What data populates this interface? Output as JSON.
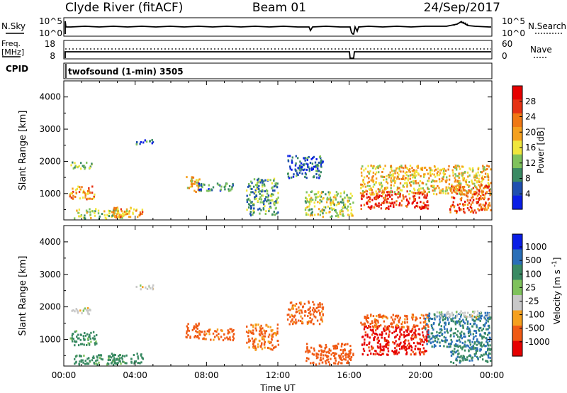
{
  "header": {
    "station": "Clyde River (fitACF)",
    "beam": "Beam 01",
    "date": "24/Sep/2017"
  },
  "nsky": {
    "left_label": "N.Sky",
    "right_label": "N.Search",
    "top_tick": "10^5",
    "bottom_tick": "10^0",
    "right_top_tick": "10^5",
    "right_bottom_tick": "10^0"
  },
  "freq": {
    "left_label_1": "Freq.",
    "left_label_2": "[MHz]",
    "left_top_tick": "18",
    "left_bottom_tick": "8",
    "right_label": "Nave",
    "right_top_tick": "60",
    "right_bottom_tick": "0"
  },
  "cpid": {
    "label": "CPID",
    "program": "twofsound (1-min) 3505"
  },
  "colors": {
    "power_scale": [
      "#0a1ee6",
      "#1f4fb0",
      "#3a8a63",
      "#7fc25c",
      "#f0e63c",
      "#f5a01e",
      "#f07814",
      "#e63214",
      "#e60000"
    ],
    "velocity_scale": [
      "#e60000",
      "#f05a14",
      "#f5a01e",
      "#c8c8c8",
      "#7fc25c",
      "#3a8a63",
      "#2a6fb8",
      "#0a1ee6"
    ],
    "ground_scatter": "#c8c8c8"
  },
  "chart_data": [
    {
      "type": "heatmap",
      "panel": "power",
      "ylabel": "Slant Range [km]",
      "xlabel": "",
      "y_ticks": [
        "1000",
        "2000",
        "3000",
        "4000"
      ],
      "x_range_hours": [
        0,
        24
      ],
      "y_range_km": [
        180,
        4500
      ],
      "colorbar": {
        "label": "Power [dB]",
        "ticks": [
          "4",
          "8",
          "12",
          "16",
          "20",
          "24",
          "28"
        ]
      },
      "blobs": [
        {
          "t0": 0.3,
          "t1": 1.7,
          "r0": 850,
          "r1": 1250,
          "v": 22
        },
        {
          "t0": 0.3,
          "t1": 1.6,
          "r0": 1800,
          "r1": 2000,
          "v": 12
        },
        {
          "t0": 0.5,
          "t1": 3.5,
          "r0": 250,
          "r1": 550,
          "v": 14
        },
        {
          "t0": 2.6,
          "t1": 4.4,
          "r0": 280,
          "r1": 600,
          "v": 20
        },
        {
          "t0": 4.0,
          "t1": 5.0,
          "r0": 2550,
          "r1": 2700,
          "v": 8
        },
        {
          "t0": 6.8,
          "t1": 7.6,
          "r0": 1050,
          "r1": 1550,
          "v": 18
        },
        {
          "t0": 7.5,
          "t1": 9.5,
          "r0": 1100,
          "r1": 1350,
          "v": 8
        },
        {
          "t0": 10.2,
          "t1": 12.0,
          "r0": 350,
          "r1": 1500,
          "v": 10
        },
        {
          "t0": 12.5,
          "t1": 14.5,
          "r0": 1500,
          "r1": 2200,
          "v": 6
        },
        {
          "t0": 13.5,
          "t1": 16.2,
          "r0": 300,
          "r1": 1100,
          "v": 14
        },
        {
          "t0": 16.6,
          "t1": 20.4,
          "r0": 550,
          "r1": 1100,
          "v": 28
        },
        {
          "t0": 16.6,
          "t1": 23.9,
          "r0": 1000,
          "r1": 1900,
          "v": 18
        },
        {
          "t0": 21.6,
          "t1": 23.9,
          "r0": 400,
          "r1": 1300,
          "v": 24
        }
      ]
    },
    {
      "type": "heatmap",
      "panel": "velocity",
      "ylabel": "Slant Range [km]",
      "xlabel": "Time UT",
      "y_ticks": [
        "1000",
        "2000",
        "3000",
        "4000"
      ],
      "x_ticks": [
        "00:00",
        "04:00",
        "08:00",
        "12:00",
        "16:00",
        "20:00",
        "00:00"
      ],
      "x_range_hours": [
        0,
        24
      ],
      "y_range_km": [
        180,
        4500
      ],
      "colorbar": {
        "label": "Velocity [m s^-1]",
        "ticks": [
          "1000",
          "500",
          "100",
          "25",
          "-25",
          "-100",
          "-500",
          "-1000"
        ]
      },
      "blobs": [
        {
          "t0": 0.3,
          "t1": 1.6,
          "r0": 1800,
          "r1": 2000,
          "v": 0
        },
        {
          "t0": 0.3,
          "t1": 1.8,
          "r0": 850,
          "r1": 1300,
          "v": 150
        },
        {
          "t0": 0.5,
          "t1": 3.5,
          "r0": 250,
          "r1": 550,
          "v": 150
        },
        {
          "t0": 2.6,
          "t1": 4.4,
          "r0": 280,
          "r1": 600,
          "v": 300
        },
        {
          "t0": 4.0,
          "t1": 5.0,
          "r0": 2550,
          "r1": 2700,
          "v": 0
        },
        {
          "t0": 6.8,
          "t1": 7.6,
          "r0": 1050,
          "r1": 1550,
          "v": -200
        },
        {
          "t0": 7.5,
          "t1": 9.5,
          "r0": 1000,
          "r1": 1350,
          "v": -150
        },
        {
          "t0": 10.2,
          "t1": 12.0,
          "r0": 700,
          "r1": 1500,
          "v": -120
        },
        {
          "t0": 12.5,
          "t1": 14.5,
          "r0": 1500,
          "r1": 2200,
          "v": -150
        },
        {
          "t0": 13.5,
          "t1": 16.2,
          "r0": 250,
          "r1": 900,
          "v": -200
        },
        {
          "t0": 16.6,
          "t1": 20.4,
          "r0": 550,
          "r1": 1450,
          "v": -700
        },
        {
          "t0": 16.6,
          "t1": 20.4,
          "r0": 1400,
          "r1": 1800,
          "v": -150
        },
        {
          "t0": 20.2,
          "t1": 23.9,
          "r0": 800,
          "r1": 1850,
          "v": 500
        },
        {
          "t0": 20.8,
          "t1": 23.9,
          "r0": 1700,
          "r1": 1900,
          "v": 0
        },
        {
          "t0": 21.6,
          "t1": 23.9,
          "r0": 300,
          "r1": 900,
          "v": 400
        }
      ]
    }
  ]
}
